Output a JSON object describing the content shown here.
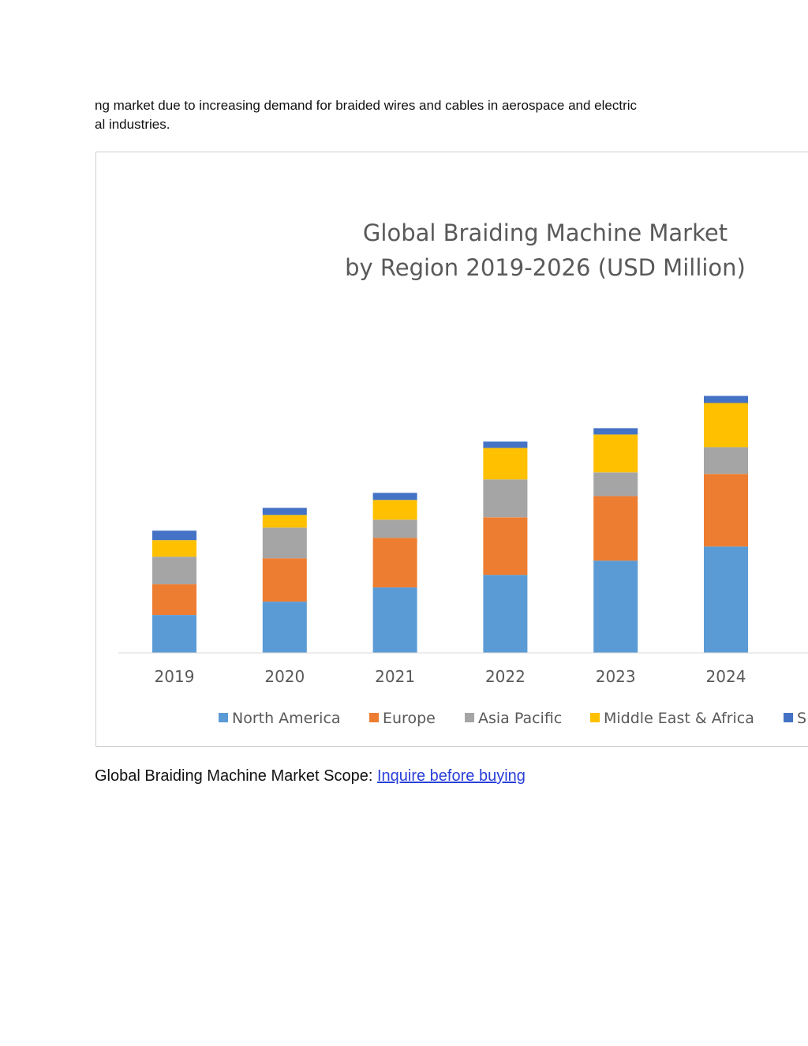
{
  "intro": {
    "line1": "ng market due to increasing demand for braided wires and cables in aerospace and electric",
    "line2": "al industries."
  },
  "caption": {
    "text": "Global Braiding Machine Market Scope: ",
    "link": "Inquire before buying"
  },
  "colors": {
    "north_america": "#5b9bd5",
    "europe": "#ed7d31",
    "asia_pacific": "#a5a5a5",
    "middle_east_africa": "#ffc000",
    "south_america": "#4472c4",
    "link": "#2a3fd8"
  },
  "chart_data": {
    "type": "bar",
    "stacked": true,
    "title_line1": "Global Braiding Machine Market",
    "title_line2": "by Region 2019-2026 (USD Million)",
    "categories": [
      "2019",
      "2020",
      "2021",
      "2022",
      "2023",
      "2024"
    ],
    "series": [
      {
        "name": "North America",
        "color": "#5b9bd5",
        "values": [
          48,
          65,
          83,
          99,
          117,
          135
        ]
      },
      {
        "name": "Europe",
        "color": "#ed7d31",
        "values": [
          39,
          55,
          63,
          73,
          82,
          92
        ]
      },
      {
        "name": "Asia Pacific",
        "color": "#a5a5a5",
        "values": [
          35,
          39,
          23,
          48,
          30,
          34
        ]
      },
      {
        "name": "Middle East & Africa",
        "color": "#ffc000",
        "values": [
          21,
          16,
          25,
          40,
          48,
          56
        ]
      },
      {
        "name": "S",
        "color": "#4472c4",
        "values": [
          12,
          9,
          9,
          8,
          8,
          9
        ]
      }
    ],
    "xlabel": "",
    "ylabel": "",
    "ylim": [
      0,
      635
    ],
    "grid": false,
    "legend": "bottom"
  }
}
